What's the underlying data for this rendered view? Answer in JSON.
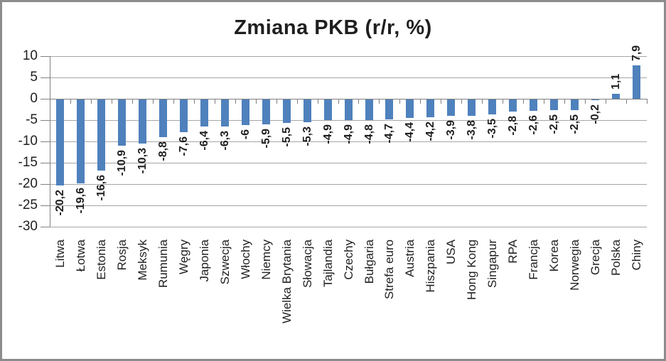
{
  "chart_data": {
    "type": "bar",
    "title": "Zmiana PKB (r/r, %)",
    "categories": [
      "Litwa",
      "Łotwa",
      "Estonia",
      "Rosja",
      "Meksyk",
      "Rumunia",
      "Węgry",
      "Japonia",
      "Szwecja",
      "Włochy",
      "Niemcy",
      "Wielka Brytania",
      "Słowacja",
      "Tajlandia",
      "Czechy",
      "Bułgaria",
      "Strefa euro",
      "Austria",
      "Hiszpania",
      "USA",
      "Hong Kong",
      "Singapur",
      "RPA",
      "Francja",
      "Korea",
      "Norwegia",
      "Grecja",
      "Polska",
      "Chiny"
    ],
    "values": [
      -20.2,
      -19.6,
      -16.6,
      -10.9,
      -10.3,
      -8.8,
      -7.6,
      -6.4,
      -6.3,
      -6,
      -5.9,
      -5.5,
      -5.3,
      -4.9,
      -4.9,
      -4.8,
      -4.7,
      -4.4,
      -4.2,
      -3.9,
      -3.8,
      -3.5,
      -2.8,
      -2.6,
      -2.5,
      -2.5,
      -0.2,
      1.1,
      7.9
    ],
    "value_labels": [
      "-20,2",
      "-19,6",
      "-16,6",
      "-10,9",
      "-10,3",
      "-8,8",
      "-7,6",
      "-6,4",
      "-6,3",
      "-6",
      "-5,9",
      "-5,5",
      "-5,3",
      "-4,9",
      "-4,9",
      "-4,8",
      "-4,7",
      "-4,4",
      "-4,2",
      "-3,9",
      "-3,8",
      "-3,5",
      "-2,8",
      "-2,6",
      "-2,5",
      "-2,5",
      "-0,2",
      "1,1",
      "7,9"
    ],
    "y_ticks": [
      10,
      5,
      0,
      -5,
      -10,
      -15,
      -20,
      -25,
      -30
    ],
    "ylim": [
      -30,
      10
    ],
    "grid": true,
    "legend": "none",
    "xlabel": "",
    "ylabel": "",
    "colors": {
      "bar": "#4F81BD",
      "gridline": "#A6A6A6",
      "axis": "#808080",
      "text": "#1F1F1F",
      "frame_border": "#8C8C8C",
      "background": "#FFFFFF"
    }
  }
}
